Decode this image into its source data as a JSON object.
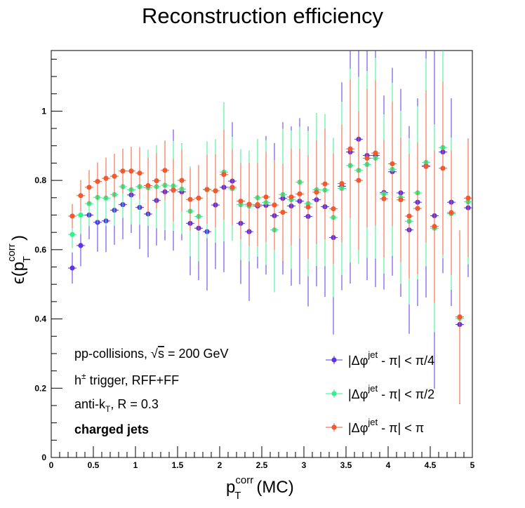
{
  "chart_data": {
    "type": "scatter",
    "title": "Reconstruction efficiency",
    "xlabel": "p_T^corr(MC)",
    "ylabel": "ε(p_T^corr)",
    "xlim": [
      0,
      5
    ],
    "ylim": [
      0,
      1.175
    ],
    "x_ticks": [
      0,
      0.5,
      1,
      1.5,
      2,
      2.5,
      3,
      3.5,
      4,
      4.5,
      5
    ],
    "x_tick_labels": [
      "0",
      "0.5",
      "1",
      "1.5",
      "2",
      "2.5",
      "3",
      "3.5",
      "4",
      "4.5",
      "5"
    ],
    "y_ticks": [
      0,
      0.2,
      0.4,
      0.6,
      0.8,
      1
    ],
    "y_tick_labels": [
      "0",
      "0.2",
      "0.4",
      "0.6",
      "0.8",
      "1"
    ],
    "grid": false,
    "legend_position": "bottom-right",
    "x": [
      0.25,
      0.35,
      0.45,
      0.55,
      0.65,
      0.75,
      0.85,
      0.95,
      1.05,
      1.15,
      1.25,
      1.35,
      1.45,
      1.55,
      1.65,
      1.75,
      1.85,
      1.95,
      2.05,
      2.15,
      2.25,
      2.35,
      2.45,
      2.55,
      2.65,
      2.75,
      2.85,
      2.95,
      3.05,
      3.15,
      3.25,
      3.35,
      3.45,
      3.55,
      3.65,
      3.75,
      3.85,
      3.95,
      4.05,
      4.15,
      4.25,
      4.35,
      4.45,
      4.55,
      4.65,
      4.75,
      4.85,
      4.95
    ],
    "series": [
      {
        "name": "|Δφ^jet - π| < π/4",
        "color": "#5c33e6",
        "values": [
          0.547,
          0.612,
          0.7,
          0.679,
          0.683,
          0.714,
          0.73,
          0.758,
          0.722,
          0.703,
          0.742,
          0.767,
          0.772,
          0.767,
          0.676,
          0.662,
          0.652,
          0.729,
          0.78,
          0.798,
          0.676,
          0.652,
          0.726,
          0.728,
          0.698,
          0.748,
          0.726,
          0.74,
          0.696,
          0.744,
          0.724,
          0.635,
          0.783,
          0.882,
          0.919,
          0.872,
          0.872,
          0.765,
          0.825,
          0.764,
          0.657,
          0.737,
          0.842,
          0.698,
          0.882,
          0.737,
          0.384,
          0.721
        ],
        "errors": [
          0.045,
          0.06,
          0.07,
          0.085,
          0.09,
          0.1,
          0.1,
          0.11,
          0.12,
          0.125,
          0.13,
          0.14,
          0.175,
          0.14,
          0.15,
          0.15,
          0.17,
          0.185,
          0.245,
          0.17,
          0.175,
          0.2,
          0.18,
          0.2,
          0.21,
          0.22,
          0.23,
          0.24,
          0.26,
          0.25,
          0.26,
          0.28,
          0.3,
          0.38,
          0.36,
          0.36,
          0.38,
          0.28,
          0.3,
          0.3,
          0.3,
          0.3,
          0.38,
          0.5,
          0.35,
          0.3,
          0.23,
          0.2
        ]
      },
      {
        "name": "|Δφ^jet - π| < π/2",
        "color": "#33f08c",
        "values": [
          0.644,
          0.7,
          0.733,
          0.751,
          0.749,
          0.759,
          0.782,
          0.773,
          0.782,
          0.779,
          0.782,
          0.786,
          0.784,
          0.775,
          0.711,
          0.696,
          0.773,
          0.77,
          0.824,
          0.776,
          0.73,
          0.726,
          0.75,
          0.736,
          0.657,
          0.759,
          0.744,
          0.795,
          0.733,
          0.773,
          0.772,
          0.693,
          0.777,
          0.843,
          0.829,
          0.846,
          0.864,
          0.761,
          0.832,
          0.751,
          0.682,
          0.764,
          0.852,
          0.662,
          0.895,
          0.704,
          0.402,
          0.738
        ],
        "errors": [
          0.04,
          0.055,
          0.065,
          0.075,
          0.08,
          0.09,
          0.09,
          0.1,
          0.11,
          0.11,
          0.12,
          0.13,
          0.13,
          0.13,
          0.13,
          0.13,
          0.14,
          0.15,
          0.2,
          0.15,
          0.16,
          0.16,
          0.17,
          0.18,
          0.18,
          0.19,
          0.2,
          0.16,
          0.21,
          0.22,
          0.22,
          0.23,
          0.25,
          0.28,
          0.27,
          0.27,
          0.29,
          0.23,
          0.25,
          0.25,
          0.24,
          0.25,
          0.3,
          0.3,
          0.32,
          0.22,
          0.23,
          0.18
        ]
      },
      {
        "name": "|Δφ^jet - π| < π",
        "color": "#f05a33",
        "values": [
          0.697,
          0.756,
          0.78,
          0.797,
          0.806,
          0.812,
          0.827,
          0.827,
          0.821,
          0.785,
          0.799,
          0.829,
          0.772,
          0.8,
          0.745,
          0.749,
          0.774,
          0.77,
          0.817,
          0.78,
          0.74,
          0.731,
          0.73,
          0.752,
          0.729,
          0.708,
          0.752,
          0.761,
          0.723,
          0.766,
          0.79,
          0.718,
          0.791,
          0.891,
          0.8,
          0.864,
          0.879,
          0.747,
          0.848,
          0.744,
          0.697,
          0.719,
          0.84,
          0.667,
          0.835,
          0.707,
          0.406,
          0.749
        ],
        "errors": [
          0.035,
          0.045,
          0.05,
          0.055,
          0.06,
          0.065,
          0.065,
          0.07,
          0.075,
          0.08,
          0.08,
          0.085,
          0.09,
          0.09,
          0.09,
          0.095,
          0.1,
          0.105,
          0.13,
          0.11,
          0.11,
          0.12,
          0.12,
          0.13,
          0.13,
          0.14,
          0.14,
          0.13,
          0.15,
          0.15,
          0.16,
          0.16,
          0.17,
          0.2,
          0.2,
          0.2,
          0.21,
          0.17,
          0.18,
          0.18,
          0.18,
          0.19,
          0.22,
          0.22,
          0.25,
          0.18,
          0.25,
          0.17
        ]
      }
    ]
  },
  "annotations": {
    "line1_a": "pp-collisions, ",
    "line1_sqrt": "√",
    "line1_s": "s",
    "line1_b": " = 200 GeV",
    "line2_a": "h",
    "line2_sup": "±",
    "line2_b": " trigger, RFF+FF",
    "line3_a": "anti-k",
    "line3_sub": "T",
    "line3_b": ", R = 0.3",
    "line4": "charged jets"
  },
  "legend": [
    {
      "pre": "|Δφ",
      "sup": "jet",
      "post": " - π| < π/4"
    },
    {
      "pre": "|Δφ",
      "sup": "jet",
      "post": " - π| < π/2"
    },
    {
      "pre": "|Δφ",
      "sup": "jet",
      "post": " - π| < π"
    }
  ],
  "axis_titles": {
    "x_main": "p",
    "x_sub": "T",
    "x_sup": "corr",
    "x_rest": "(MC)",
    "y_main": "ϵ(p",
    "y_sub": "T",
    "y_sup": "corr",
    "y_rest": ")"
  }
}
